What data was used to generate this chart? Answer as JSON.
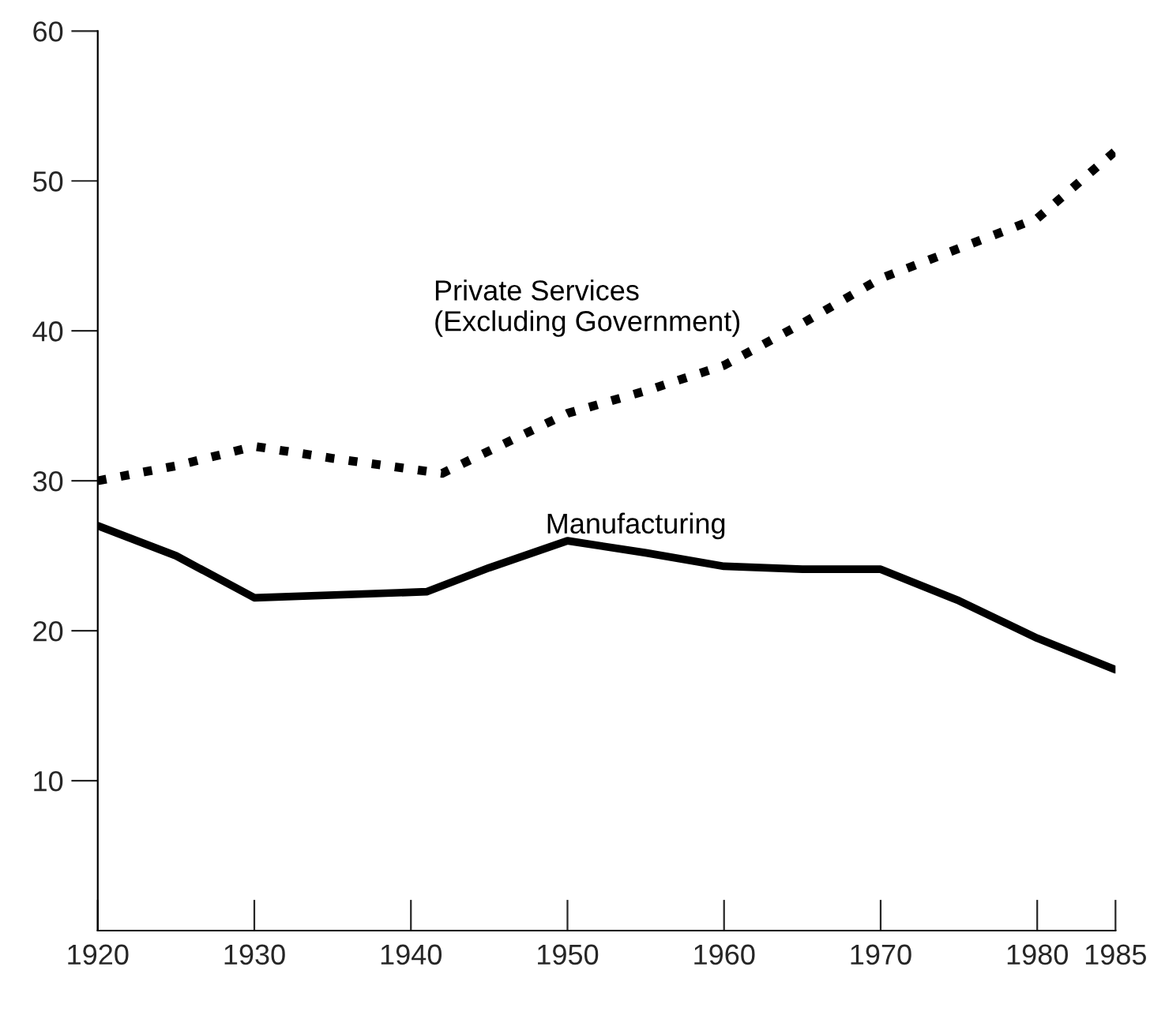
{
  "chart_data": {
    "type": "line",
    "xlim": [
      1920,
      1985
    ],
    "xticks": [
      1920,
      1930,
      1940,
      1950,
      1960,
      1970,
      1980,
      1985
    ],
    "ylim": [
      0,
      60
    ],
    "yticks": [
      10,
      20,
      30,
      40,
      50,
      60
    ],
    "grid": false,
    "legend": false,
    "marker": "none",
    "series": [
      {
        "name": "Private Services\n(Excluding Government)",
        "color": "#000000",
        "line_style": "dotted",
        "x": [
          1920,
          1925,
          1930,
          1935,
          1942,
          1946,
          1950,
          1955,
          1960,
          1965,
          1970,
          1975,
          1980,
          1985
        ],
        "values": [
          30,
          31,
          32.3,
          31.5,
          30.5,
          32.5,
          34.5,
          36,
          37.7,
          40.5,
          43.5,
          45.5,
          47.5,
          52
        ]
      },
      {
        "name": "Manufacturing",
        "color": "#000000",
        "line_style": "solid",
        "x": [
          1920,
          1925,
          1930,
          1941,
          1945,
          1950,
          1955,
          1960,
          1965,
          1970,
          1975,
          1980,
          1985
        ],
        "values": [
          27,
          25,
          22.2,
          22.6,
          24.2,
          26,
          25.2,
          24.3,
          24.1,
          24.1,
          22,
          19.5,
          17.4
        ]
      }
    ]
  }
}
